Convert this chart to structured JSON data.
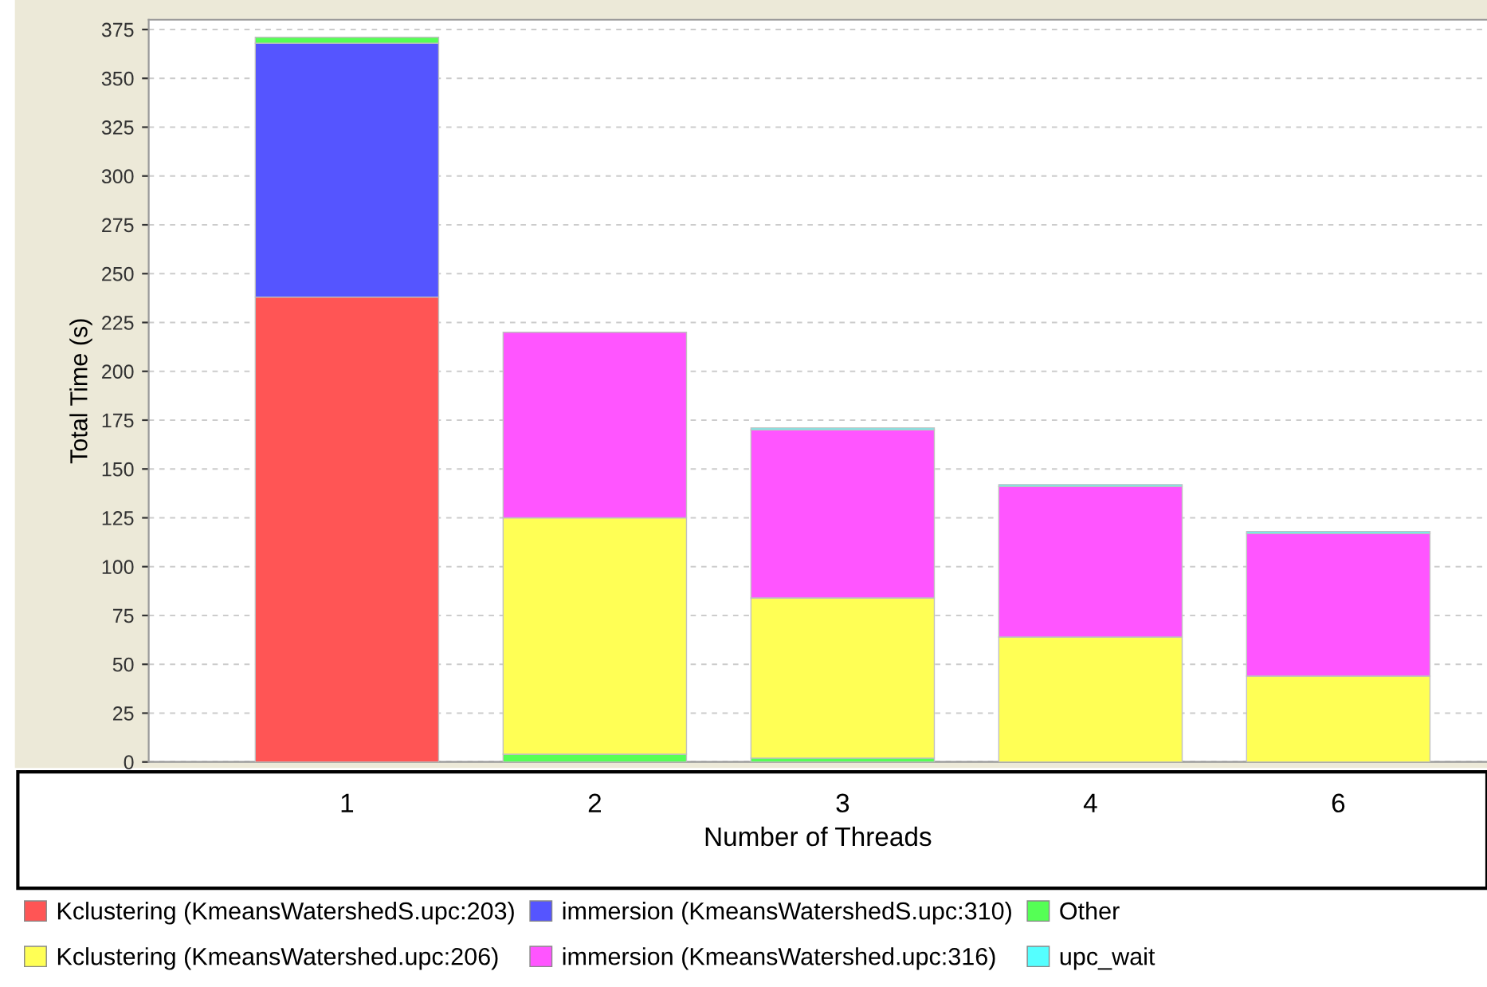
{
  "chart_data": {
    "type": "bar",
    "stacked": true,
    "xlabel": "Number of Threads",
    "ylabel": "Total Time (s)",
    "categories": [
      "1",
      "2",
      "3",
      "4",
      "6"
    ],
    "series": [
      {
        "name": "Kclustering (KmeansWatershedS.upc:203)",
        "color": "#ff5555",
        "values": [
          238,
          null,
          null,
          null,
          null
        ]
      },
      {
        "name": "immersion (KmeansWatershedS.upc:310)",
        "color": "#5555ff",
        "values": [
          130,
          null,
          null,
          null,
          null
        ]
      },
      {
        "name": "Other",
        "color": "#55ff55",
        "values": [
          3,
          4,
          2,
          null,
          null
        ]
      },
      {
        "name": "Kclustering (KmeansWatershed.upc:206)",
        "color": "#ffff55",
        "values": [
          null,
          121,
          82,
          64,
          44
        ]
      },
      {
        "name": "immersion (KmeansWatershed.upc:316)",
        "color": "#ff55ff",
        "values": [
          null,
          95,
          86,
          77,
          73
        ]
      },
      {
        "name": "upc_wait",
        "color": "#55ffff",
        "values": [
          null,
          null,
          1,
          1,
          1
        ]
      }
    ],
    "ylim": [
      0,
      380
    ],
    "yticks": [
      0,
      25,
      50,
      75,
      100,
      125,
      150,
      175,
      200,
      225,
      250,
      275,
      300,
      325,
      350,
      375
    ],
    "grid": "y",
    "legend": "bottom"
  }
}
